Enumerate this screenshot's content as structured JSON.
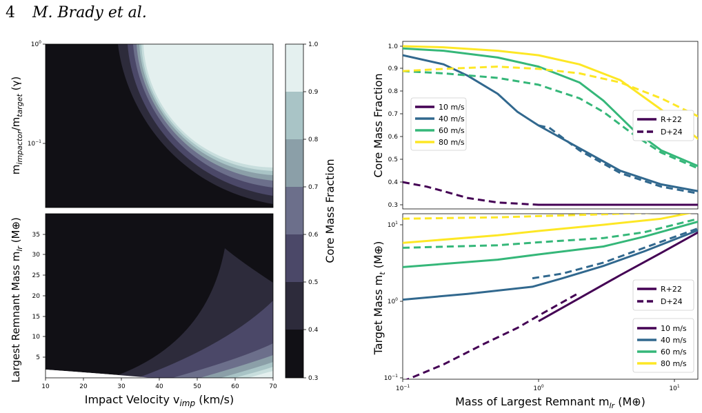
{
  "header": {
    "page_number": "4",
    "author": "M. Brady et al."
  },
  "colors": {
    "10 m/s": "#440154",
    "40 m/s": "#31688e",
    "60 m/s": "#35b779",
    "80 m/s": "#fde725",
    "contour_levels": [
      "#111015",
      "#2d2b3b",
      "#4b4868",
      "#6c6f8b",
      "#8b9fa8",
      "#a9c4c6",
      "#c8dedd",
      "#e4f0ef"
    ]
  },
  "left_panels": {
    "xlabel": "Impact Velocity v",
    "xlabel_sub": "imp",
    "xlabel_unit": " (km/s)",
    "x_ticks": [
      "10",
      "20",
      "30",
      "40",
      "50",
      "60",
      "70"
    ],
    "top": {
      "ylabel_pre": "m",
      "ylabel_sub1": "impactor",
      "ylabel_mid": "/m",
      "ylabel_sub2": "target",
      "ylabel_post": " (γ)",
      "y_ticks": [
        "10",
        "10"
      ],
      "y_tick_exps": [
        "0",
        "−1"
      ]
    },
    "bottom": {
      "ylabel_pre": "Largest Remnant Mass m",
      "ylabel_sub": "lr",
      "ylabel_post": " (M",
      "ylabel_sym": "⊕",
      "ylabel_close": ")",
      "y_ticks": [
        "35",
        "30",
        "25",
        "20",
        "15",
        "10",
        "5"
      ]
    },
    "colorbar": {
      "label": "Core Mass Fraction",
      "ticks": [
        "1.0",
        "0.9",
        "0.8",
        "0.7",
        "0.6",
        "0.5",
        "0.4",
        "0.3"
      ]
    }
  },
  "chart_data": [
    {
      "type": "heatmap",
      "title": "",
      "x_range": [
        10,
        70
      ],
      "y_range": [
        0.02,
        1.0
      ],
      "y_scale": "log",
      "z_label": "Core Mass Fraction",
      "z_levels": [
        0.3,
        0.4,
        0.5,
        0.6,
        0.7,
        0.8,
        0.9,
        1.0
      ],
      "description": "filled contours of core mass fraction vs impact velocity and impactor/target mass ratio"
    },
    {
      "type": "heatmap",
      "title": "",
      "x_range": [
        10,
        70
      ],
      "y_range": [
        0,
        40
      ],
      "z_levels": [
        0.3,
        0.4,
        0.5,
        0.6,
        0.7,
        0.8,
        0.9,
        1.0
      ]
    },
    {
      "type": "line",
      "title": "",
      "xlabel": "Mass of Largest Remnant m_lr (M⊕)",
      "ylabel": "Core Mass Fraction",
      "x_scale": "log",
      "xlim": [
        0.1,
        15
      ],
      "ylim": [
        0.28,
        1.02
      ],
      "y_ticks": [
        "1.0",
        "0.9",
        "0.8",
        "0.7",
        "0.6",
        "0.5",
        "0.4",
        "0.3"
      ],
      "legend_velocity": [
        "10 m/s",
        "40 m/s",
        "60 m/s",
        "80 m/s"
      ],
      "legend_style": [
        "R+22",
        "D+24"
      ],
      "legend_velocity_position": "upper left",
      "legend_style_position": "upper right",
      "series": [
        {
          "velocity": "10 m/s",
          "style": "R+22",
          "x": [
            1.0,
            2.0,
            15
          ],
          "y": [
            0.3,
            0.3,
            0.3
          ]
        },
        {
          "velocity": "10 m/s",
          "style": "D+24",
          "x": [
            0.1,
            0.15,
            0.2,
            0.3,
            0.5,
            1.0,
            2.0,
            4.0
          ],
          "y": [
            0.4,
            0.38,
            0.36,
            0.33,
            0.31,
            0.3,
            0.3,
            0.3
          ]
        },
        {
          "velocity": "40 m/s",
          "style": "R+22",
          "x": [
            0.1,
            0.2,
            0.3,
            0.5,
            0.7,
            1.0,
            2.0,
            4.0,
            8.0,
            15
          ],
          "y": [
            0.96,
            0.92,
            0.87,
            0.79,
            0.71,
            0.65,
            0.55,
            0.45,
            0.39,
            0.36
          ]
        },
        {
          "velocity": "40 m/s",
          "style": "D+24",
          "x": [
            1.0,
            1.2,
            2.0,
            4.0,
            8.0,
            15
          ],
          "y": [
            0.65,
            0.64,
            0.54,
            0.44,
            0.38,
            0.35
          ]
        },
        {
          "velocity": "60 m/s",
          "style": "R+22",
          "x": [
            0.1,
            0.2,
            0.5,
            1.0,
            2.0,
            3.0,
            5.0,
            8.0,
            15
          ],
          "y": [
            0.99,
            0.98,
            0.95,
            0.91,
            0.84,
            0.76,
            0.63,
            0.54,
            0.47
          ]
        },
        {
          "velocity": "60 m/s",
          "style": "D+24",
          "x": [
            0.1,
            0.2,
            0.5,
            1.0,
            2.0,
            3.0,
            5.0,
            8.0,
            15
          ],
          "y": [
            0.89,
            0.88,
            0.86,
            0.83,
            0.77,
            0.71,
            0.61,
            0.53,
            0.46
          ]
        },
        {
          "velocity": "80 m/s",
          "style": "R+22",
          "x": [
            0.1,
            0.2,
            0.5,
            1.0,
            2.0,
            4.0,
            8.0,
            15
          ],
          "y": [
            1.0,
            0.995,
            0.98,
            0.96,
            0.92,
            0.85,
            0.72,
            0.59
          ]
        },
        {
          "velocity": "80 m/s",
          "style": "D+24",
          "x": [
            0.1,
            0.2,
            0.5,
            1.0,
            2.0,
            4.0,
            8.0,
            15
          ],
          "y": [
            0.89,
            0.9,
            0.91,
            0.9,
            0.88,
            0.84,
            0.77,
            0.69
          ]
        }
      ]
    },
    {
      "type": "line",
      "title": "",
      "xlabel": "Mass of Largest Remnant m_lr (M⊕)",
      "ylabel": "Target Mass m_t (M⊕)",
      "x_scale": "log",
      "y_scale": "log",
      "xlim": [
        0.1,
        15
      ],
      "ylim": [
        0.1,
        15
      ],
      "legend_style_position": "center right",
      "legend_velocity_position": "lower right",
      "series": [
        {
          "velocity": "10 m/s",
          "style": "R+22",
          "x": [
            1.0,
            2.0,
            4.0,
            8.0,
            15
          ],
          "y": [
            0.55,
            1.1,
            2.2,
            4.3,
            8.0
          ]
        },
        {
          "velocity": "10 m/s",
          "style": "D+24",
          "x": [
            0.1,
            0.2,
            0.4,
            0.7,
            1.0,
            2.0
          ],
          "y": [
            0.09,
            0.15,
            0.28,
            0.45,
            0.65,
            1.3
          ]
        },
        {
          "velocity": "40 m/s",
          "style": "R+22",
          "x": [
            0.1,
            0.3,
            0.9,
            1.5,
            3.0,
            6.0,
            15
          ],
          "y": [
            1.05,
            1.25,
            1.55,
            2.0,
            2.9,
            4.5,
            8.5
          ]
        },
        {
          "velocity": "40 m/s",
          "style": "D+24",
          "x": [
            0.9,
            1.5,
            3.0,
            6.0,
            15
          ],
          "y": [
            2.0,
            2.3,
            3.2,
            5.0,
            9.0
          ]
        },
        {
          "velocity": "60 m/s",
          "style": "R+22",
          "x": [
            0.1,
            0.5,
            1.0,
            3.0,
            6.0,
            15
          ],
          "y": [
            2.8,
            3.5,
            4.1,
            5.2,
            7.0,
            11.0
          ]
        },
        {
          "velocity": "60 m/s",
          "style": "D+24",
          "x": [
            0.1,
            0.5,
            1.0,
            3.0,
            6.0,
            15
          ],
          "y": [
            5.0,
            5.4,
            5.9,
            6.7,
            8.0,
            12.0
          ]
        },
        {
          "velocity": "80 m/s",
          "style": "R+22",
          "x": [
            0.1,
            0.5,
            1.0,
            3.0,
            8.0,
            15
          ],
          "y": [
            5.8,
            7.3,
            8.3,
            10.0,
            12.0,
            15.0
          ]
        },
        {
          "velocity": "80 m/s",
          "style": "D+24",
          "x": [
            0.1,
            0.5,
            1.0,
            3.0,
            8.0,
            15
          ],
          "y": [
            12.0,
            12.5,
            13.0,
            13.7,
            14.5,
            16.0
          ]
        }
      ]
    }
  ],
  "right_panels": {
    "top_ylabel": "Core Mass Fraction",
    "bottom_ylabel_pre": "Target Mass m",
    "bottom_ylabel_sub": "t",
    "bottom_ylabel_post": " (M",
    "bottom_ylabel_sym": "⊕",
    "bottom_ylabel_close": ")",
    "xlabel_pre": "Mass of Largest Remnant m",
    "xlabel_sub": "lr",
    "xlabel_post": " (M",
    "xlabel_sym": "⊕",
    "xlabel_close": ")",
    "x_tick_labels": [
      {
        "base": "10",
        "exp": "−1"
      },
      {
        "base": "10",
        "exp": "0"
      },
      {
        "base": "10",
        "exp": "1"
      }
    ],
    "bottom_y_tick_labels": [
      {
        "base": "10",
        "exp": "1"
      },
      {
        "base": "10",
        "exp": "0"
      },
      {
        "base": "10",
        "exp": "−1"
      }
    ],
    "legend_velocity": [
      "10 m/s",
      "40 m/s",
      "60 m/s",
      "80 m/s"
    ],
    "legend_style": [
      "R+22",
      "D+24"
    ]
  }
}
